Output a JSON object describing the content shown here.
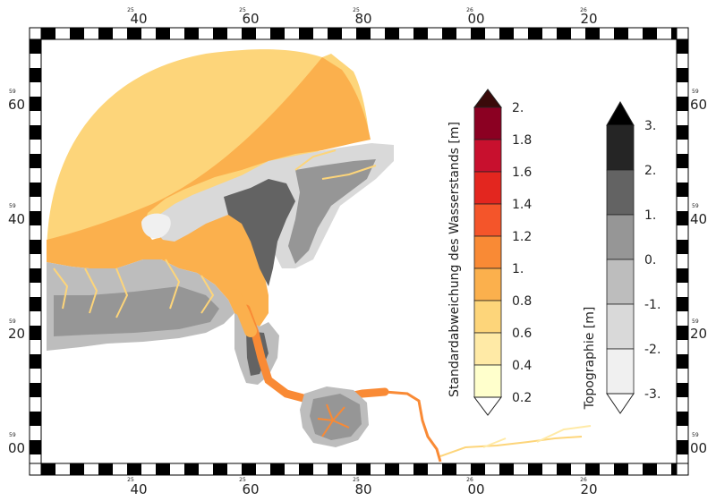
{
  "axis_labels": {
    "top": [
      {
        "minor": "25",
        "major": "40"
      },
      {
        "minor": "25",
        "major": "60"
      },
      {
        "minor": "25",
        "major": "80"
      },
      {
        "minor": "26",
        "major": "00"
      },
      {
        "minor": "26",
        "major": "20"
      }
    ],
    "bottom": [
      {
        "minor": "25",
        "major": "40"
      },
      {
        "minor": "25",
        "major": "60"
      },
      {
        "minor": "25",
        "major": "80"
      },
      {
        "minor": "26",
        "major": "00"
      },
      {
        "minor": "26",
        "major": "20"
      }
    ],
    "left": [
      {
        "minor": "59",
        "major": "60"
      },
      {
        "minor": "59",
        "major": "40"
      },
      {
        "minor": "59",
        "major": "20"
      },
      {
        "minor": "59",
        "major": "00"
      }
    ],
    "right": [
      {
        "minor": "59",
        "major": "60"
      },
      {
        "minor": "59",
        "major": "40"
      },
      {
        "minor": "59",
        "major": "20"
      },
      {
        "minor": "59",
        "major": "00"
      }
    ]
  },
  "legend_std": {
    "title": "Standardabweichung des Wasserstands [m]",
    "ticks": [
      "2.",
      "1.8",
      "1.6",
      "1.4",
      "1.2",
      "1.",
      "0.8",
      "0.6",
      "0.4",
      "0.2"
    ],
    "colors": [
      "#3a0a0a",
      "#8b0022",
      "#c8102e",
      "#e3261f",
      "#f4552a",
      "#f98a35",
      "#fbb04d",
      "#fdd57a",
      "#ffeaa6",
      "#ffffcc",
      "#ffffff"
    ]
  },
  "legend_topo": {
    "title": "Topographie [m]",
    "ticks": [
      "3.",
      "2.",
      "1.",
      "0.",
      "-1.",
      "-2.",
      "-3."
    ],
    "colors": [
      "#000000",
      "#252525",
      "#636363",
      "#969696",
      "#bdbdbd",
      "#d9d9d9",
      "#f0f0f0",
      "#ffffff"
    ]
  }
}
